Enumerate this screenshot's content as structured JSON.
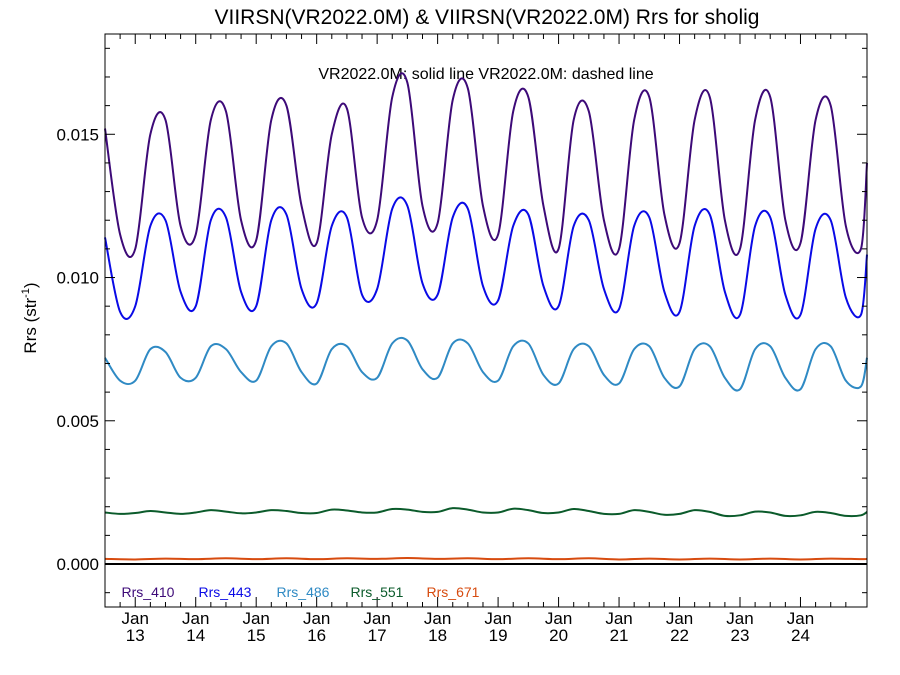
{
  "chart_data": {
    "type": "line",
    "title": "VIIRSN(VR2022.0M) & VIIRSN(VR2022.0M)  Rrs for sholig",
    "subtitle": "VR2022.0M: solid line   VR2022.0M: dashed line",
    "ylabel_main": "Rrs (str",
    "ylabel_sup": "-1",
    "ylabel_tail": ")",
    "xlim": [
      12.5,
      25.1
    ],
    "ylim": [
      -0.0015,
      0.0185
    ],
    "y_ticks": [
      0.0,
      0.005,
      0.01,
      0.015
    ],
    "y_tick_labels": [
      "0.000",
      "0.005",
      "0.010",
      "0.015"
    ],
    "x_ticks": [
      {
        "x": 13,
        "month": "Jan",
        "day": "13"
      },
      {
        "x": 14,
        "month": "Jan",
        "day": "14"
      },
      {
        "x": 15,
        "month": "Jan",
        "day": "15"
      },
      {
        "x": 16,
        "month": "Jan",
        "day": "16"
      },
      {
        "x": 17,
        "month": "Jan",
        "day": "17"
      },
      {
        "x": 18,
        "month": "Jan",
        "day": "18"
      },
      {
        "x": 19,
        "month": "Jan",
        "day": "19"
      },
      {
        "x": 20,
        "month": "Jan",
        "day": "20"
      },
      {
        "x": 21,
        "month": "Jan",
        "day": "21"
      },
      {
        "x": 22,
        "month": "Jan",
        "day": "22"
      },
      {
        "x": 23,
        "month": "Jan",
        "day": "23"
      },
      {
        "x": 24,
        "month": "Jan",
        "day": "24"
      }
    ],
    "zero_line": 0.0,
    "series": [
      {
        "name": "Rrs_410",
        "color": "#3d0a78",
        "x": [
          12.5,
          12.75,
          13.0,
          13.25,
          13.5,
          13.75,
          14.0,
          14.25,
          14.5,
          14.75,
          15.0,
          15.25,
          15.5,
          15.75,
          16.0,
          16.25,
          16.5,
          16.75,
          17.0,
          17.25,
          17.5,
          17.75,
          18.0,
          18.25,
          18.5,
          18.75,
          19.0,
          19.25,
          19.5,
          19.75,
          20.0,
          20.25,
          20.5,
          20.75,
          21.0,
          21.25,
          21.5,
          21.75,
          22.0,
          22.25,
          22.5,
          22.75,
          23.0,
          23.25,
          23.5,
          23.75,
          24.0,
          24.25,
          24.5,
          24.75,
          25.0,
          25.1
        ],
        "values": [
          0.0152,
          0.0115,
          0.011,
          0.015,
          0.0155,
          0.0118,
          0.0115,
          0.0155,
          0.0158,
          0.012,
          0.0113,
          0.0155,
          0.016,
          0.0125,
          0.0112,
          0.015,
          0.0159,
          0.0121,
          0.012,
          0.0163,
          0.0168,
          0.0125,
          0.0119,
          0.0162,
          0.0166,
          0.0125,
          0.0115,
          0.0158,
          0.0163,
          0.0125,
          0.011,
          0.0155,
          0.0158,
          0.012,
          0.011,
          0.0155,
          0.0163,
          0.0122,
          0.0112,
          0.0155,
          0.0163,
          0.012,
          0.011,
          0.0155,
          0.0163,
          0.012,
          0.0112,
          0.0155,
          0.016,
          0.0118,
          0.011,
          0.014
        ]
      },
      {
        "name": "Rrs_443",
        "color": "#0a0ae6",
        "x": [
          12.5,
          12.75,
          13.0,
          13.25,
          13.5,
          13.75,
          14.0,
          14.25,
          14.5,
          14.75,
          15.0,
          15.25,
          15.5,
          15.75,
          16.0,
          16.25,
          16.5,
          16.75,
          17.0,
          17.25,
          17.5,
          17.75,
          18.0,
          18.25,
          18.5,
          18.75,
          19.0,
          19.25,
          19.5,
          19.75,
          20.0,
          20.25,
          20.5,
          20.75,
          21.0,
          21.25,
          21.5,
          21.75,
          22.0,
          22.25,
          22.5,
          22.75,
          23.0,
          23.25,
          23.5,
          23.75,
          24.0,
          24.25,
          24.5,
          24.75,
          25.0,
          25.1
        ],
        "values": [
          0.0114,
          0.0088,
          0.009,
          0.0118,
          0.012,
          0.0095,
          0.009,
          0.012,
          0.0121,
          0.0095,
          0.009,
          0.012,
          0.0122,
          0.0096,
          0.0091,
          0.0118,
          0.0121,
          0.0094,
          0.0096,
          0.0124,
          0.0125,
          0.0098,
          0.0094,
          0.0121,
          0.0124,
          0.0097,
          0.0092,
          0.0118,
          0.0122,
          0.0097,
          0.009,
          0.0118,
          0.012,
          0.0096,
          0.0089,
          0.0118,
          0.0121,
          0.0095,
          0.0088,
          0.0118,
          0.0122,
          0.0095,
          0.0087,
          0.0118,
          0.0121,
          0.0094,
          0.0087,
          0.0117,
          0.012,
          0.0093,
          0.0087,
          0.0108
        ]
      },
      {
        "name": "Rrs_486",
        "color": "#2f8ac4",
        "x": [
          12.5,
          12.75,
          13.0,
          13.25,
          13.5,
          13.75,
          14.0,
          14.25,
          14.5,
          14.75,
          15.0,
          15.25,
          15.5,
          15.75,
          16.0,
          16.25,
          16.5,
          16.75,
          17.0,
          17.25,
          17.5,
          17.75,
          18.0,
          18.25,
          18.5,
          18.75,
          19.0,
          19.25,
          19.5,
          19.75,
          20.0,
          20.25,
          20.5,
          20.75,
          21.0,
          21.25,
          21.5,
          21.75,
          22.0,
          22.25,
          22.5,
          22.75,
          23.0,
          23.25,
          23.5,
          23.75,
          24.0,
          24.25,
          24.5,
          24.75,
          25.0,
          25.1
        ],
        "values": [
          0.0072,
          0.0064,
          0.0064,
          0.0075,
          0.0074,
          0.0065,
          0.0065,
          0.0076,
          0.0075,
          0.0067,
          0.0064,
          0.0076,
          0.0077,
          0.0067,
          0.0063,
          0.0075,
          0.0076,
          0.0067,
          0.0065,
          0.0077,
          0.0078,
          0.0068,
          0.0065,
          0.0077,
          0.0077,
          0.0067,
          0.0064,
          0.0076,
          0.0077,
          0.0066,
          0.0063,
          0.0075,
          0.0076,
          0.0066,
          0.0063,
          0.0075,
          0.0076,
          0.0065,
          0.0062,
          0.0075,
          0.0076,
          0.0065,
          0.0061,
          0.0075,
          0.0076,
          0.0065,
          0.0061,
          0.0075,
          0.0076,
          0.0064,
          0.0062,
          0.0072
        ]
      },
      {
        "name": "Rrs_551",
        "color": "#0b5b2b",
        "x": [
          12.5,
          12.75,
          13.0,
          13.25,
          13.5,
          13.75,
          14.0,
          14.25,
          14.5,
          14.75,
          15.0,
          15.25,
          15.5,
          15.75,
          16.0,
          16.25,
          16.5,
          16.75,
          17.0,
          17.25,
          17.5,
          17.75,
          18.0,
          18.25,
          18.5,
          18.75,
          19.0,
          19.25,
          19.5,
          19.75,
          20.0,
          20.25,
          20.5,
          20.75,
          21.0,
          21.25,
          21.5,
          21.75,
          22.0,
          22.25,
          22.5,
          22.75,
          23.0,
          23.25,
          23.5,
          23.75,
          24.0,
          24.25,
          24.5,
          24.75,
          25.0,
          25.1
        ],
        "values": [
          0.0018,
          0.00175,
          0.00178,
          0.00185,
          0.0018,
          0.00175,
          0.0018,
          0.00188,
          0.00183,
          0.00177,
          0.0018,
          0.00188,
          0.00185,
          0.00178,
          0.00178,
          0.0019,
          0.00187,
          0.0018,
          0.0018,
          0.00192,
          0.0019,
          0.00182,
          0.00182,
          0.00195,
          0.0019,
          0.0018,
          0.0018,
          0.00193,
          0.00188,
          0.00178,
          0.0018,
          0.00192,
          0.00185,
          0.00175,
          0.00175,
          0.00188,
          0.00182,
          0.00172,
          0.00175,
          0.00188,
          0.00182,
          0.00168,
          0.0017,
          0.00183,
          0.0018,
          0.00168,
          0.0017,
          0.00182,
          0.00178,
          0.00168,
          0.0017,
          0.00182
        ]
      },
      {
        "name": "Rrs_671",
        "color": "#d74b0f",
        "x": [
          12.5,
          13.0,
          13.5,
          14.0,
          14.5,
          15.0,
          15.5,
          16.0,
          16.5,
          17.0,
          17.5,
          18.0,
          18.5,
          19.0,
          19.5,
          20.0,
          20.5,
          21.0,
          21.5,
          22.0,
          22.5,
          23.0,
          23.5,
          24.0,
          24.5,
          25.0,
          25.1
        ],
        "values": [
          0.00018,
          0.00016,
          0.00019,
          0.00017,
          0.0002,
          0.00017,
          0.0002,
          0.00017,
          0.0002,
          0.00018,
          0.00021,
          0.00018,
          0.0002,
          0.00017,
          0.0002,
          0.00017,
          0.0002,
          0.00016,
          0.00019,
          0.00016,
          0.00019,
          0.00016,
          0.00019,
          0.00016,
          0.00019,
          0.00017,
          0.00018
        ]
      }
    ]
  }
}
